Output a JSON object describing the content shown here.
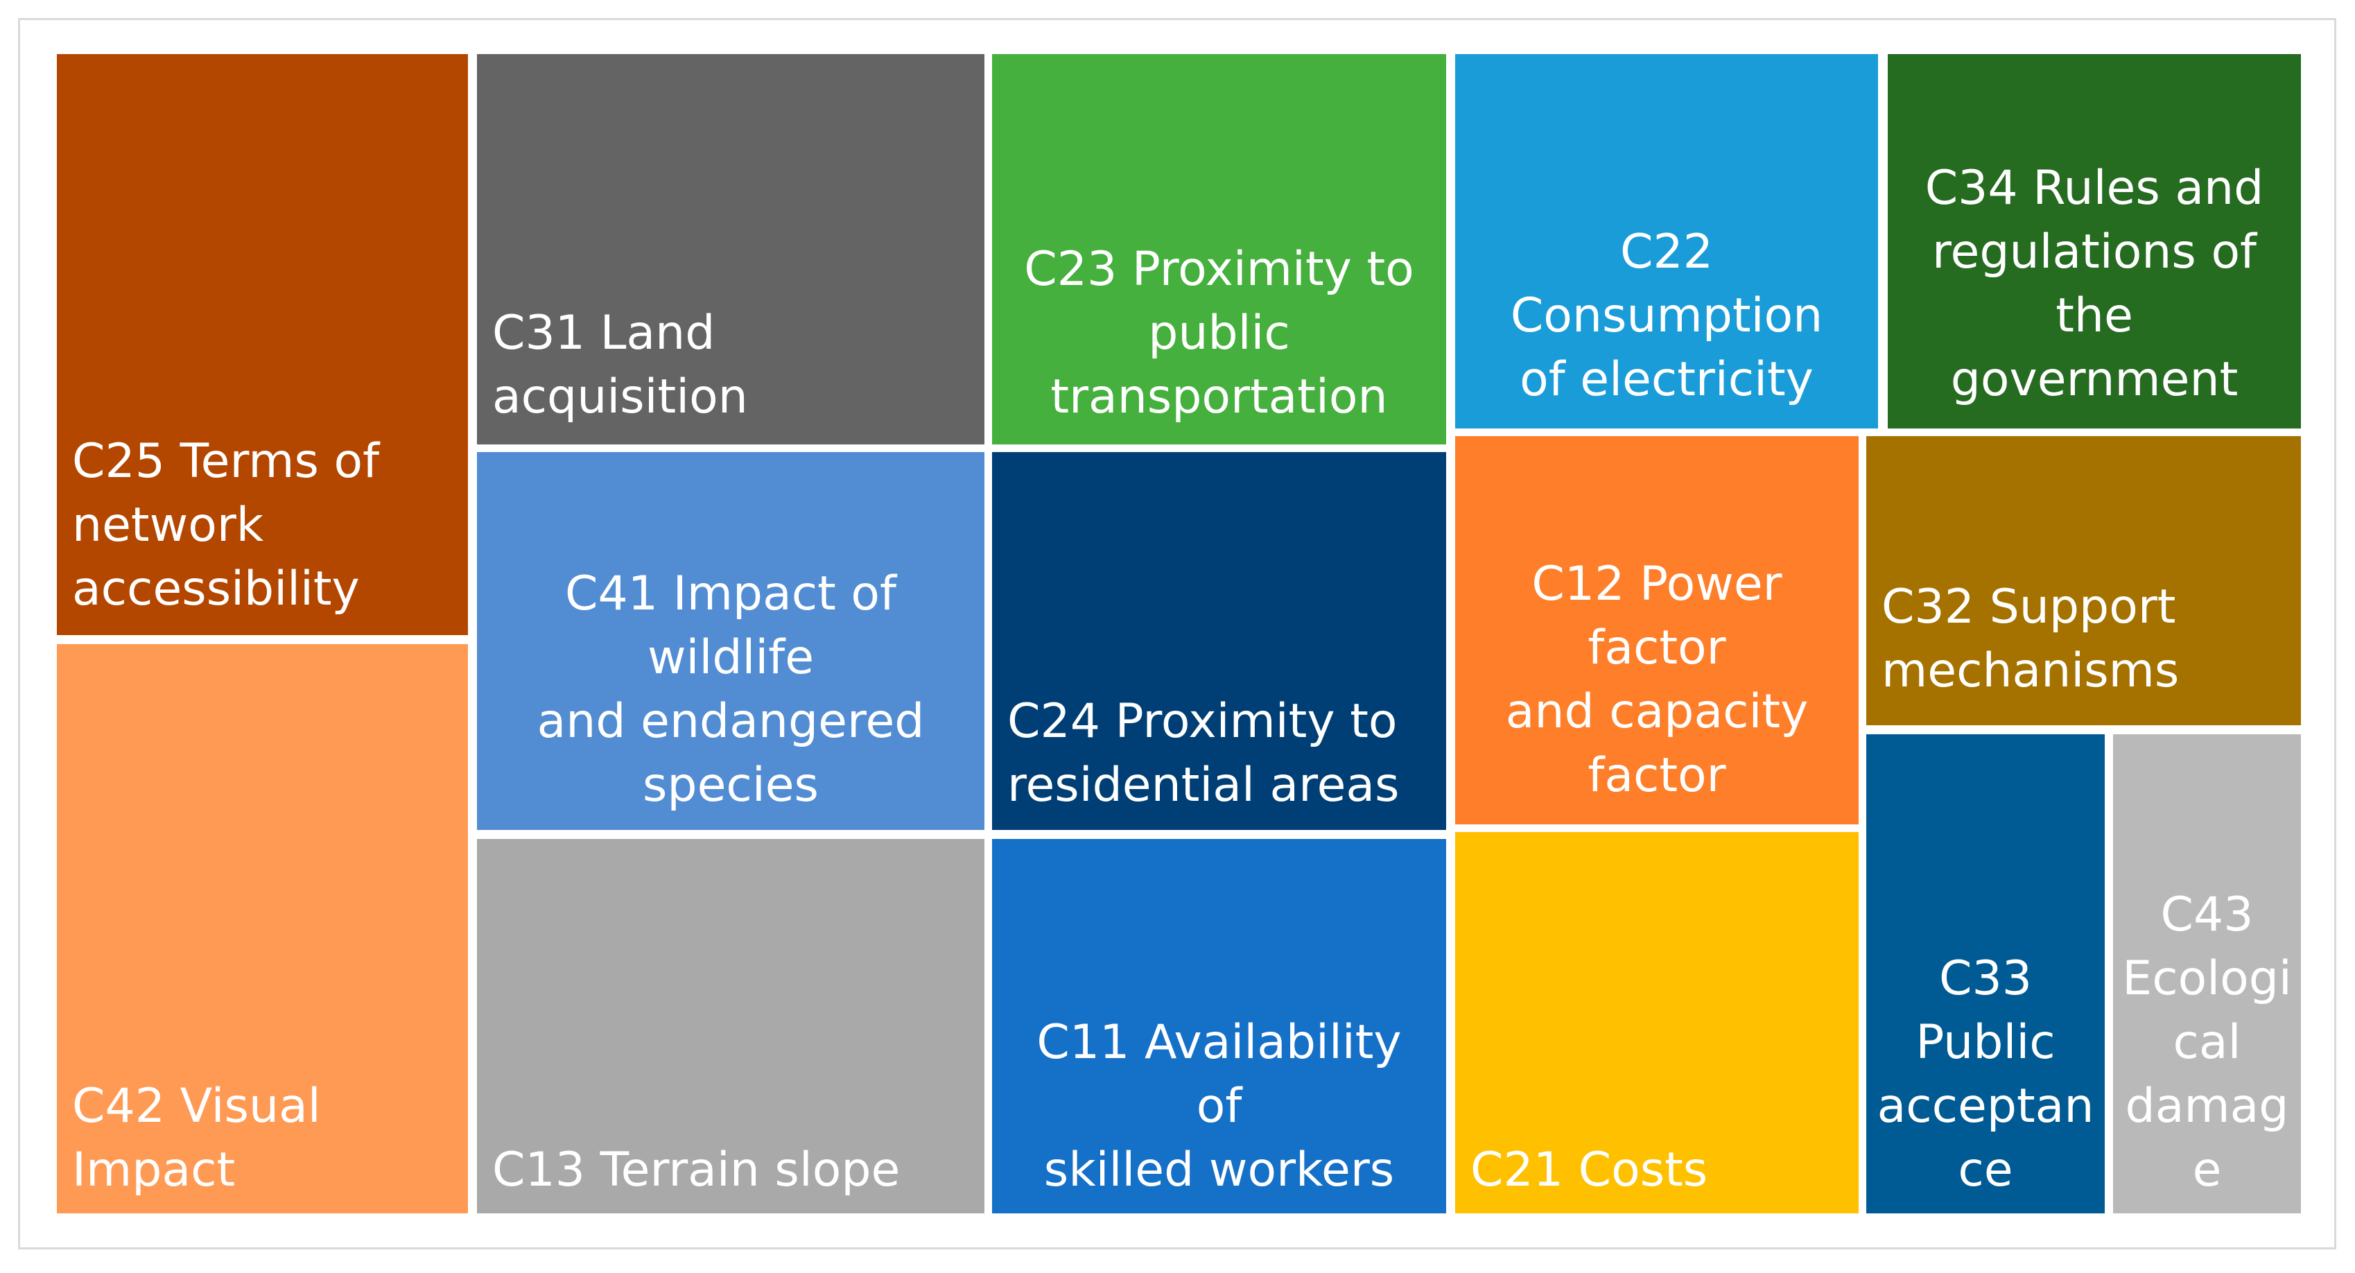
{
  "chart_data": {
    "type": "treemap",
    "items": [
      {
        "label": "C25 Terms of network accessibility",
        "lines": [
          "C25 Terms of",
          "network",
          "accessibility"
        ],
        "color": "#b34700"
      },
      {
        "label": "C42 Visual Impact",
        "lines": [
          "C42 Visual Impact"
        ],
        "color": "#ff9a55"
      },
      {
        "label": "C31 Land acquisition",
        "lines": [
          "C31 Land acquisition"
        ],
        "color": "#646464"
      },
      {
        "label": "C41 Impact of wildlife and endangered species",
        "lines": [
          "C41 Impact of wildlife",
          "and endangered",
          "species"
        ],
        "color": "#528dd3"
      },
      {
        "label": "C13 Terrain slope",
        "lines": [
          "C13 Terrain slope"
        ],
        "color": "#a9a9a9"
      },
      {
        "label": "C23 Proximity to public transportation",
        "lines": [
          "C23 Proximity to",
          "public",
          "transportation"
        ],
        "color": "#45b03d"
      },
      {
        "label": "C24 Proximity to residential areas",
        "lines": [
          "C24 Proximity to",
          "residential areas"
        ],
        "color": "#003f75"
      },
      {
        "label": "C11 Availability of skilled workers",
        "lines": [
          "C11 Availability of",
          "skilled workers"
        ],
        "color": "#1570c8"
      },
      {
        "label": "C22 Consumption of electricity",
        "lines": [
          "C22 Consumption",
          "of electricity"
        ],
        "color": "#1a9cd9"
      },
      {
        "label": "C34 Rules and regulations of the government",
        "lines": [
          "C34 Rules and",
          "regulations of the",
          "government"
        ],
        "color": "#256b20"
      },
      {
        "label": "C12 Power factor and capacity factor",
        "lines": [
          "C12 Power factor",
          "and capacity",
          "factor"
        ],
        "color": "#fe7e29"
      },
      {
        "label": "C32 Support mechanisms",
        "lines": [
          "C32 Support",
          "mechanisms"
        ],
        "color": "#a57200"
      },
      {
        "label": "C21 Costs",
        "lines": [
          "C21 Costs"
        ],
        "color": "#ffc000"
      },
      {
        "label": "C33 Public acceptance",
        "lines": [
          "C33",
          "Public",
          "acceptan",
          "ce"
        ],
        "color": "#005b94"
      },
      {
        "label": "C43 Ecological damage",
        "lines": [
          "C43",
          "Ecologi",
          "cal",
          "damag",
          "e"
        ],
        "color": "#b9b9b9"
      }
    ]
  }
}
